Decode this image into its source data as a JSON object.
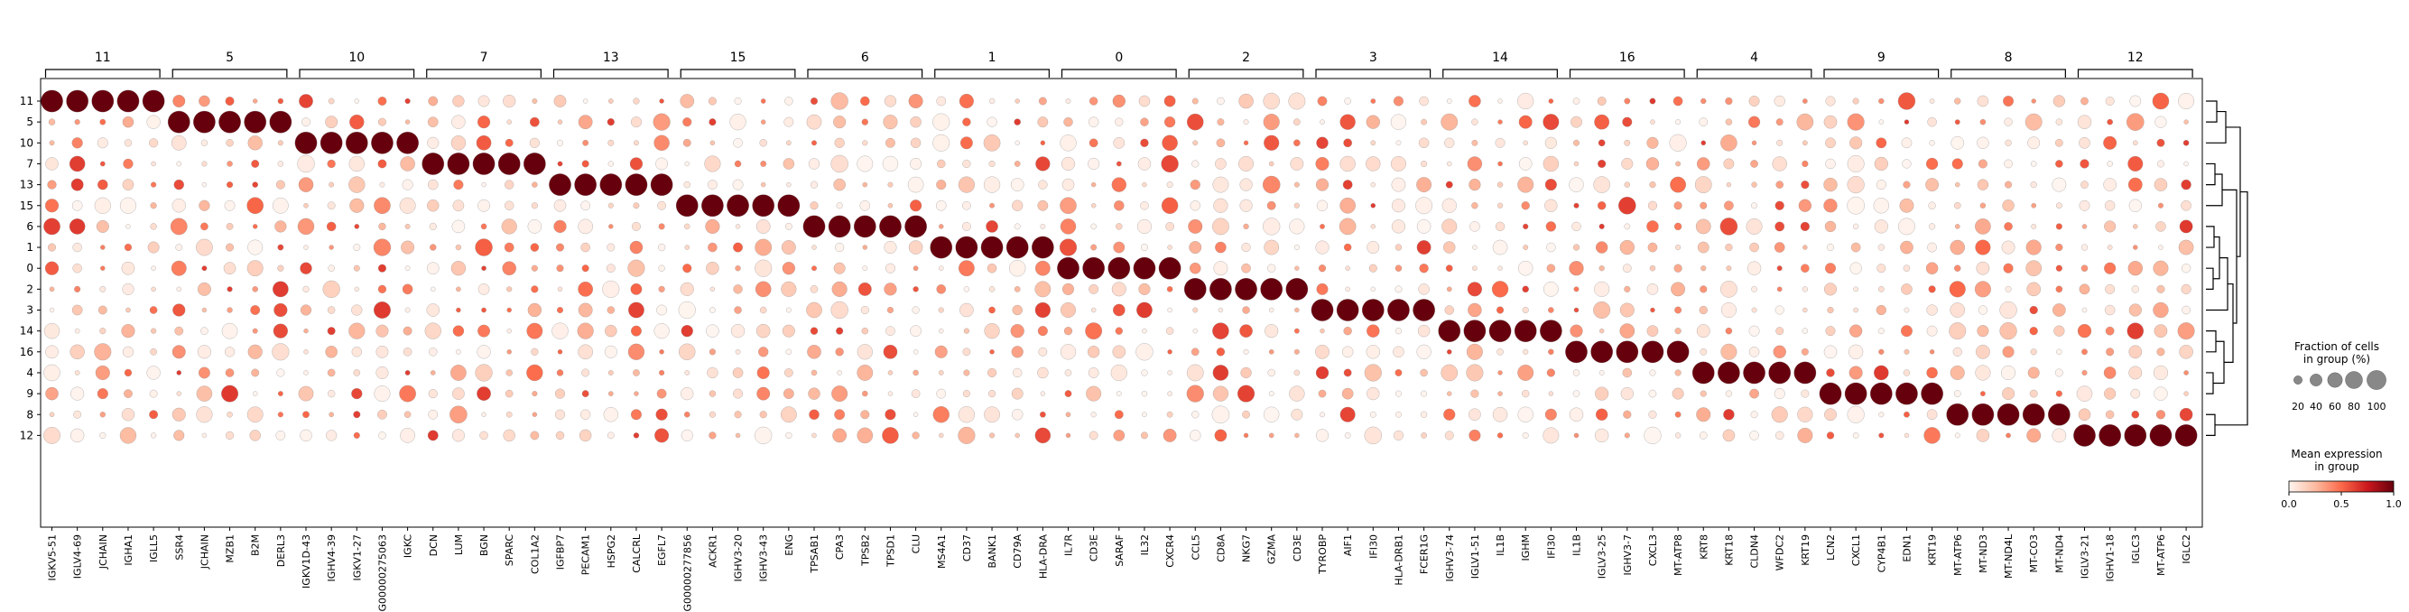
{
  "chart_data": {
    "type": "dotplot",
    "title": "",
    "row_labels": [
      "11",
      "5",
      "10",
      "7",
      "13",
      "15",
      "6",
      "1",
      "0",
      "2",
      "3",
      "14",
      "16",
      "4",
      "9",
      "8",
      "12"
    ],
    "groups": [
      {
        "label": "11",
        "genes": [
          "IGKV5-51",
          "IGLV4-69",
          "JCHAIN",
          "IGHA1",
          "IGLL5"
        ]
      },
      {
        "label": "5",
        "genes": [
          "SSR4",
          "JCHAIN",
          "MZB1",
          "B2M",
          "DERL3"
        ]
      },
      {
        "label": "10",
        "genes": [
          "IGKV1D-43",
          "IGHV4-39",
          "IGKV1-27",
          "ENSG00000275063",
          "IGKC"
        ]
      },
      {
        "label": "7",
        "genes": [
          "DCN",
          "LUM",
          "BGN",
          "SPARC",
          "COL1A2"
        ]
      },
      {
        "label": "13",
        "genes": [
          "IGFBP7",
          "PECAM1",
          "HSPG2",
          "CALCRL",
          "EGFL7"
        ]
      },
      {
        "label": "15",
        "genes": [
          "ENSG00000277856",
          "ACKR1",
          "IGHV3-20",
          "IGHV3-43",
          "ENG"
        ]
      },
      {
        "label": "6",
        "genes": [
          "TPSAB1",
          "CPA3",
          "TPSB2",
          "TPSD1",
          "CLU"
        ]
      },
      {
        "label": "1",
        "genes": [
          "MS4A1",
          "CD37",
          "BANK1",
          "CD79A",
          "HLA-DRA"
        ]
      },
      {
        "label": "0",
        "genes": [
          "IL7R",
          "CD3E",
          "SARAF",
          "IL32",
          "CXCR4"
        ]
      },
      {
        "label": "2",
        "genes": [
          "CCL5",
          "CD8A",
          "NKG7",
          "GZMA",
          "CD3E"
        ]
      },
      {
        "label": "3",
        "genes": [
          "TYROBP",
          "AIF1",
          "IFI30",
          "HLA-DRB1",
          "FCER1G"
        ]
      },
      {
        "label": "14",
        "genes": [
          "IGHV3-74",
          "IGLV1-51",
          "IL1B",
          "IGHM",
          "IFI30"
        ]
      },
      {
        "label": "16",
        "genes": [
          "IL1B",
          "IGLV3-25",
          "IGHV3-7",
          "CXCL3",
          "MT-ATP8"
        ]
      },
      {
        "label": "4",
        "genes": [
          "KRT8",
          "KRT18",
          "CLDN4",
          "WFDC2",
          "KRT19"
        ]
      },
      {
        "label": "9",
        "genes": [
          "LCN2",
          "CXCL1",
          "CYP4B1",
          "EDN1",
          "KRT19"
        ]
      },
      {
        "label": "8",
        "genes": [
          "MT-ATP6",
          "MT-ND3",
          "MT-ND4L",
          "MT-CO3",
          "MT-ND4"
        ]
      },
      {
        "label": "12",
        "genes": [
          "IGLV3-21",
          "IGHV1-18",
          "IGLC3",
          "MT-ATP6",
          "IGLC2"
        ]
      }
    ],
    "size_legend": {
      "title_line1": "Fraction of cells",
      "title_line2": "in group (%)",
      "ticks": [
        "20",
        "40",
        "60",
        "80",
        "100"
      ]
    },
    "color_legend": {
      "title_line1": "Mean expression",
      "title_line2": "in group",
      "ticks": [
        "0.0",
        "0.5",
        "1.0"
      ],
      "colormap": "Reds"
    },
    "marker_fraction_estimate": 0.95,
    "marker_expression_estimate": 1.0,
    "dendrogram": true
  }
}
